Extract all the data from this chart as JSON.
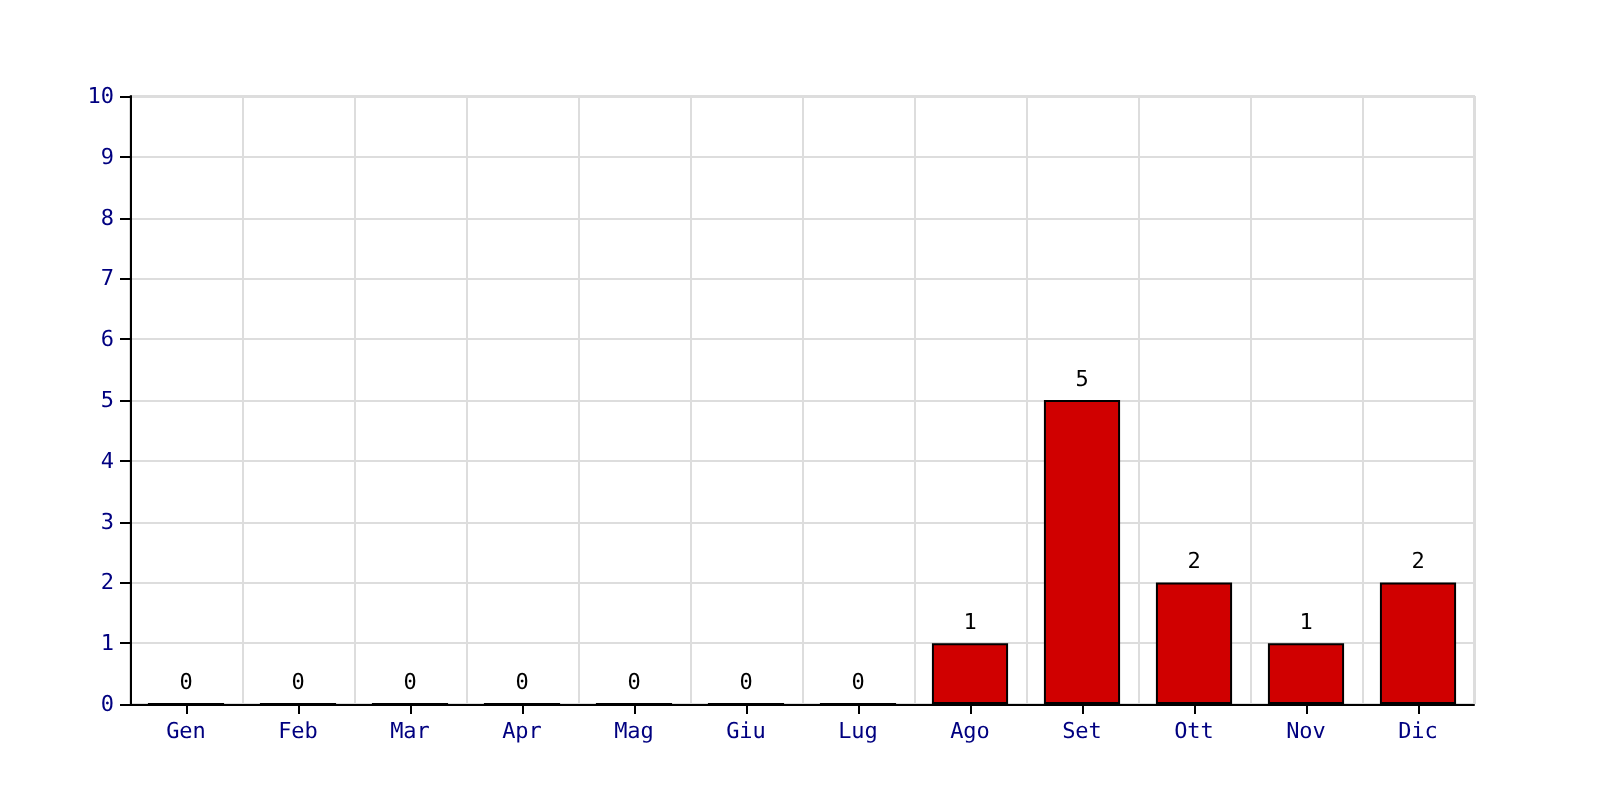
{
  "chart_data": {
    "type": "bar",
    "categories": [
      "Gen",
      "Feb",
      "Mar",
      "Apr",
      "Mag",
      "Giu",
      "Lug",
      "Ago",
      "Set",
      "Ott",
      "Nov",
      "Dic"
    ],
    "values": [
      0,
      0,
      0,
      0,
      0,
      0,
      0,
      1,
      5,
      2,
      1,
      2
    ],
    "color": "#d00000",
    "ylim": [
      0,
      10
    ],
    "yticks": [
      0,
      1,
      2,
      3,
      4,
      5,
      6,
      7,
      8,
      9,
      10
    ],
    "grid": true,
    "data_labels": true
  }
}
